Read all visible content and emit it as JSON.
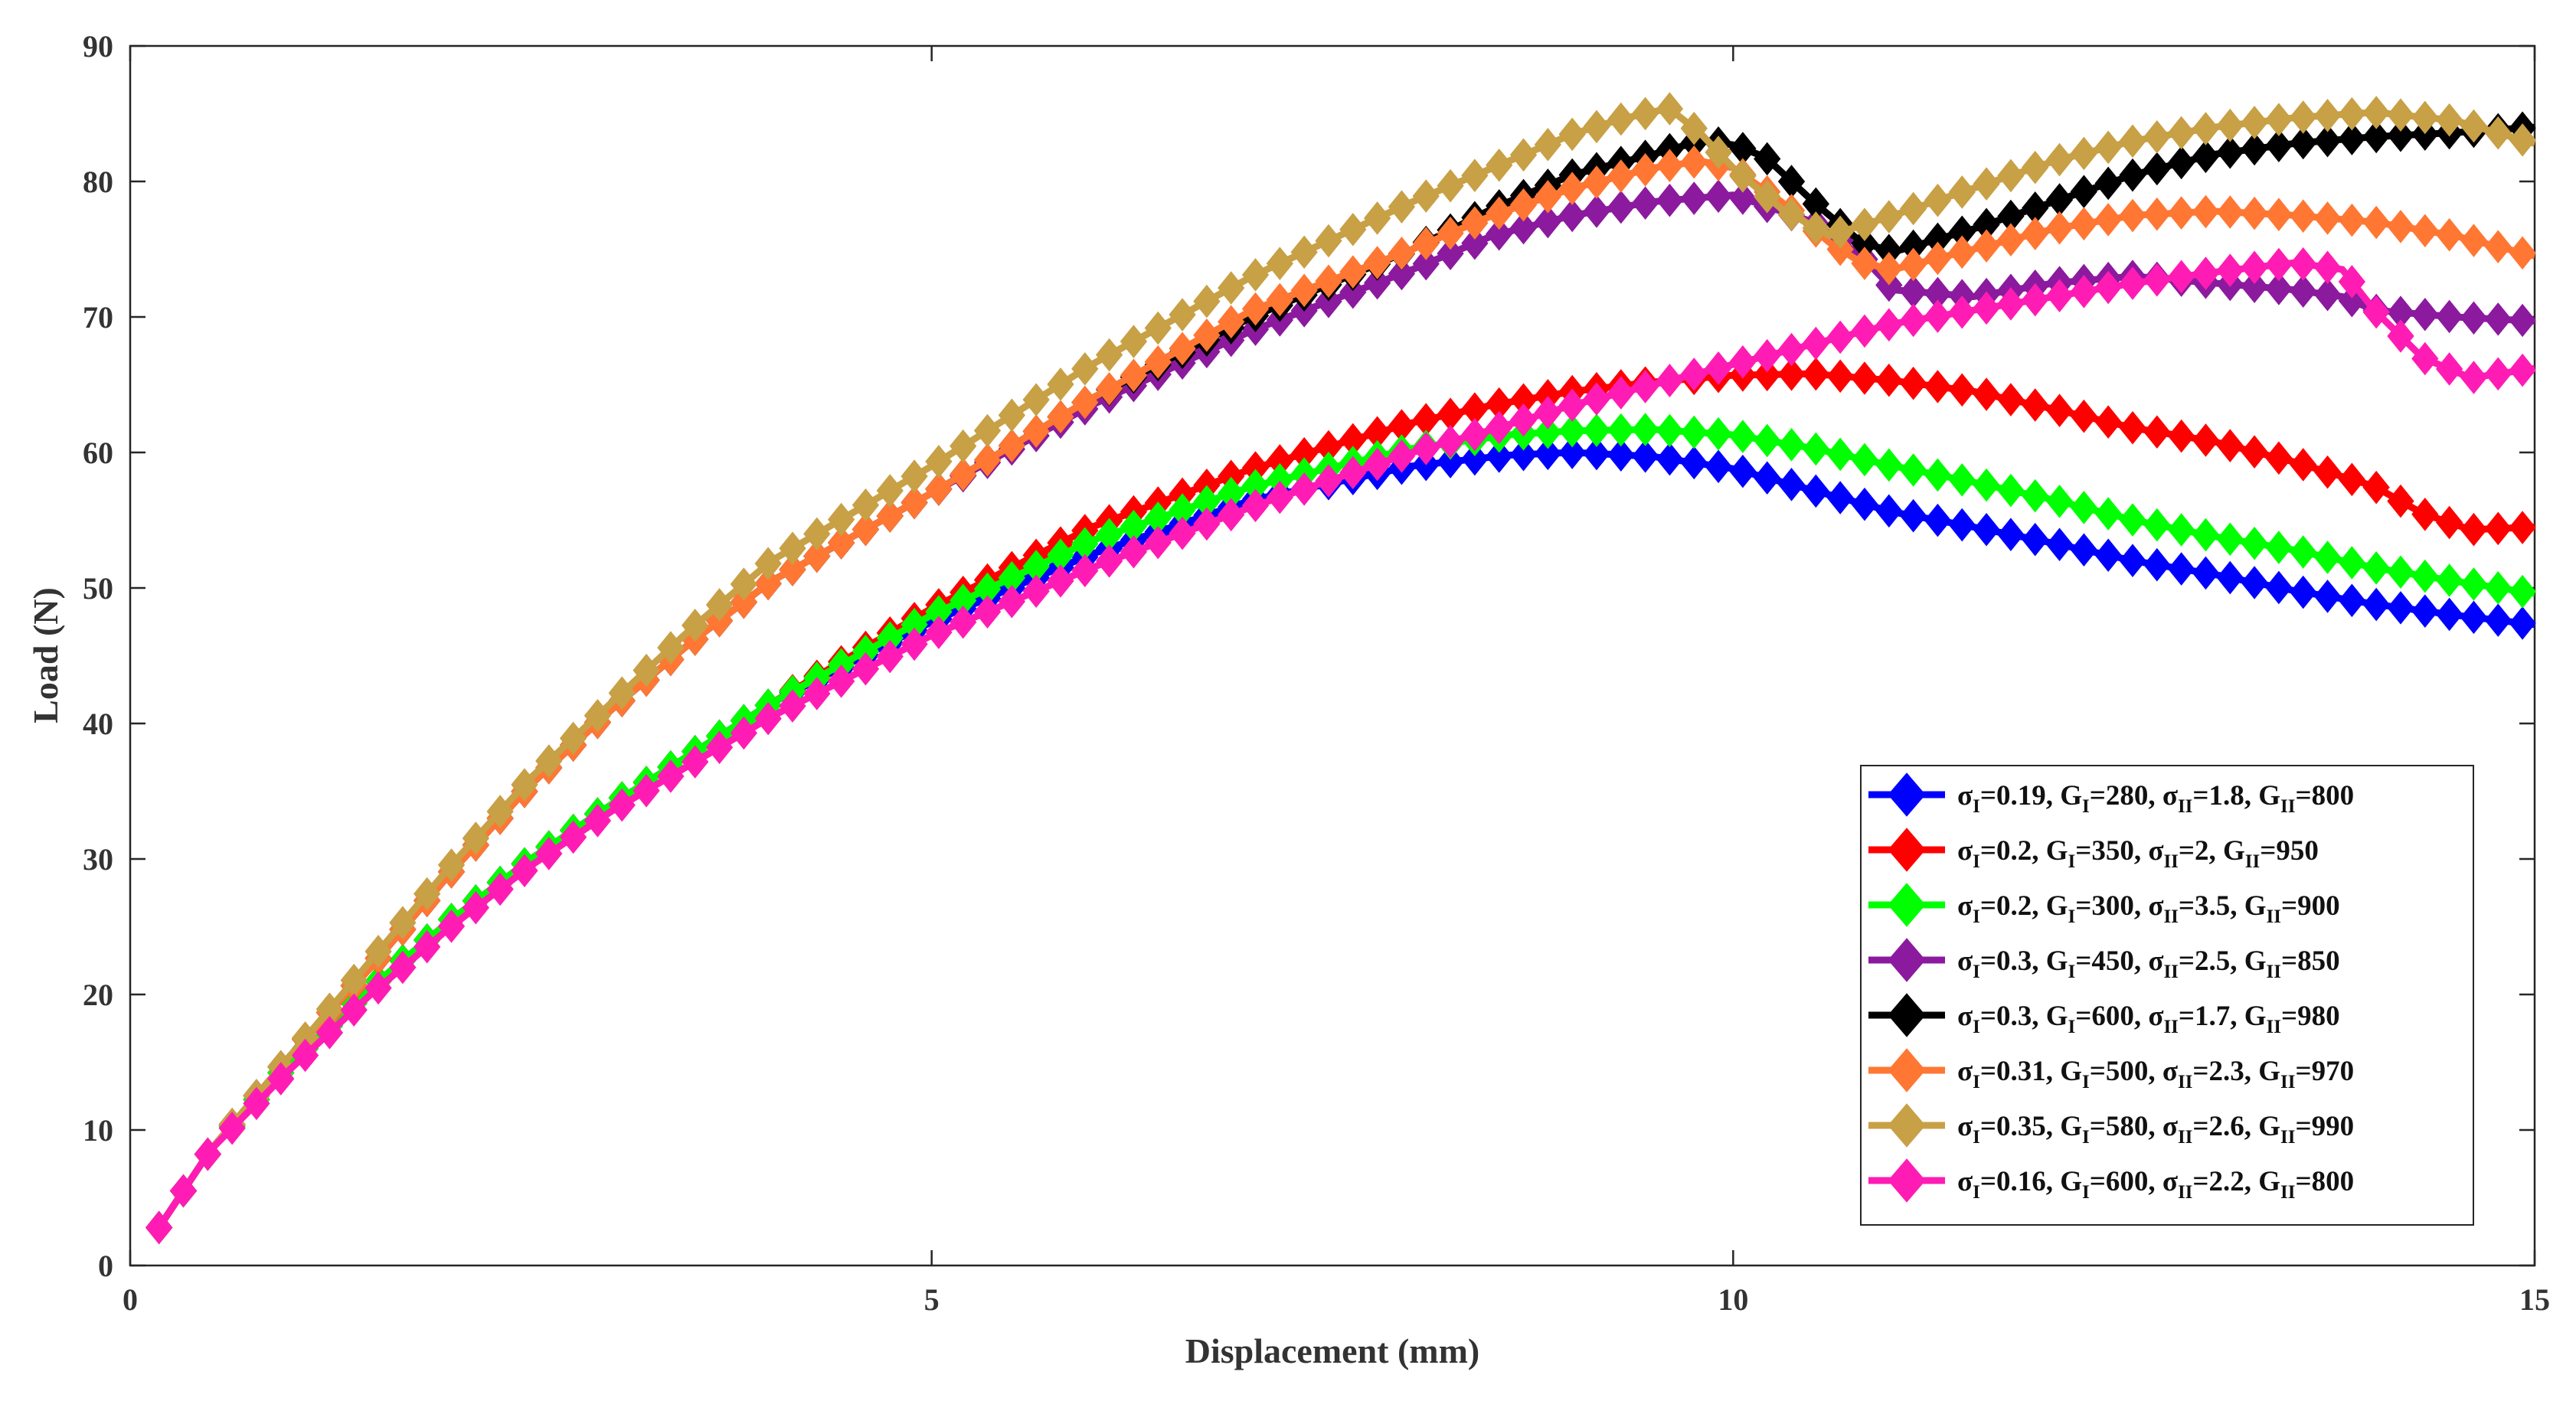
{
  "chart_data": {
    "type": "line",
    "title": "",
    "xlabel": "Displacement (mm)",
    "ylabel": "Load (N)",
    "xlim": [
      0,
      15
    ],
    "ylim": [
      0,
      90
    ],
    "xticks": [
      0,
      5,
      10,
      15
    ],
    "yticks": [
      0,
      10,
      20,
      30,
      40,
      50,
      60,
      70,
      80,
      90
    ],
    "xtick_labels": [
      "0",
      "5",
      "10",
      "15"
    ],
    "ytick_labels": [
      "0",
      "10",
      "20",
      "30",
      "40",
      "50",
      "60",
      "70",
      "80",
      "90"
    ],
    "grid": false,
    "legend_position": "bottom-right",
    "marker": "diamond",
    "series": [
      {
        "name": "σI=0.19, GI=280, σII=1.8, GII=800",
        "legend": {
          "s1": "0.19",
          "g1": "280",
          "s2": "1.8",
          "g2": "800"
        },
        "color": "#0000ff",
        "points": [
          [
            0.18,
            2.8
          ],
          [
            0.5,
            8.5
          ],
          [
            1,
            15
          ],
          [
            1.5,
            20.5
          ],
          [
            2,
            25.5
          ],
          [
            2.5,
            30
          ],
          [
            3,
            34
          ],
          [
            4,
            41.5
          ],
          [
            5,
            47.5
          ],
          [
            6,
            52.5
          ],
          [
            7,
            56.5
          ],
          [
            8,
            59
          ],
          [
            8.6,
            59.8
          ],
          [
            9,
            60
          ],
          [
            9.5,
            59.7
          ],
          [
            10,
            58.8
          ],
          [
            10.5,
            57.2
          ],
          [
            11,
            55.6
          ],
          [
            11.5,
            54.5
          ],
          [
            12,
            53.3
          ],
          [
            12.5,
            52
          ],
          [
            13,
            51
          ],
          [
            13.5,
            49.8
          ],
          [
            14,
            48.8
          ],
          [
            14.5,
            48
          ],
          [
            15,
            47.3
          ]
        ]
      },
      {
        "name": "σI=0.2, GI=350, σII=2, GII=950",
        "legend": {
          "s1": "0.2",
          "g1": "350",
          "s2": "2",
          "g2": "950"
        },
        "color": "#ff0000",
        "points": [
          [
            0.18,
            2.8
          ],
          [
            0.5,
            8.5
          ],
          [
            1,
            15
          ],
          [
            1.5,
            20.5
          ],
          [
            2,
            25.5
          ],
          [
            2.5,
            30
          ],
          [
            3,
            34
          ],
          [
            4,
            41.5
          ],
          [
            5,
            48.5
          ],
          [
            6,
            54.5
          ],
          [
            7,
            58.8
          ],
          [
            8,
            62.2
          ],
          [
            8.5,
            63.5
          ],
          [
            9,
            64.5
          ],
          [
            9.5,
            65.2
          ],
          [
            10,
            65.7
          ],
          [
            10.5,
            65.8
          ],
          [
            11,
            65.3
          ],
          [
            11.5,
            64.5
          ],
          [
            12,
            63.2
          ],
          [
            12.5,
            61.8
          ],
          [
            13,
            60.8
          ],
          [
            13.5,
            59.3
          ],
          [
            14,
            57.5
          ],
          [
            14.3,
            55.5
          ],
          [
            14.6,
            54.3
          ],
          [
            15,
            54.5
          ]
        ]
      },
      {
        "name": "σI=0.2, GI=300, σII=3.5, GII=900",
        "legend": {
          "s1": "0.2",
          "g1": "300",
          "s2": "3.5",
          "g2": "900"
        },
        "color": "#00ff00",
        "points": [
          [
            0.18,
            2.8
          ],
          [
            0.5,
            8.5
          ],
          [
            1,
            15
          ],
          [
            1.5,
            20.5
          ],
          [
            2,
            25.5
          ],
          [
            2.5,
            30
          ],
          [
            3,
            34
          ],
          [
            4,
            41.5
          ],
          [
            5,
            48
          ],
          [
            6,
            53.5
          ],
          [
            7,
            57.5
          ],
          [
            8,
            60.3
          ],
          [
            8.6,
            61.3
          ],
          [
            9,
            61.6
          ],
          [
            9.5,
            61.7
          ],
          [
            10,
            61.3
          ],
          [
            10.5,
            60.3
          ],
          [
            11,
            59
          ],
          [
            11.5,
            57.8
          ],
          [
            12,
            56.5
          ],
          [
            12.5,
            55
          ],
          [
            13,
            53.8
          ],
          [
            13.5,
            52.8
          ],
          [
            14,
            51.5
          ],
          [
            14.5,
            50.5
          ],
          [
            15,
            49.6
          ]
        ]
      },
      {
        "name": "σI=0.3, GI=450, σII=2.5, GII=850",
        "legend": {
          "s1": "0.3",
          "g1": "450",
          "s2": "2.5",
          "g2": "850"
        },
        "color": "#8b1a9e",
        "points": [
          [
            0.18,
            2.8
          ],
          [
            0.5,
            8.5
          ],
          [
            1,
            15.5
          ],
          [
            1.5,
            22
          ],
          [
            2,
            29
          ],
          [
            2.5,
            35.5
          ],
          [
            3,
            41
          ],
          [
            3.5,
            46
          ],
          [
            4,
            50.5
          ],
          [
            5,
            57
          ],
          [
            6,
            63.5
          ],
          [
            7,
            69
          ],
          [
            8,
            73.5
          ],
          [
            8.5,
            76
          ],
          [
            9,
            77.5
          ],
          [
            9.5,
            78.5
          ],
          [
            10,
            79
          ],
          [
            10.5,
            77
          ],
          [
            10.8,
            74.5
          ],
          [
            11,
            72
          ],
          [
            11.5,
            71.5
          ],
          [
            12,
            72.5
          ],
          [
            12.5,
            73
          ],
          [
            13,
            72.5
          ],
          [
            13.5,
            72
          ],
          [
            13.8,
            71.5
          ],
          [
            14,
            70.5
          ],
          [
            14.5,
            70
          ],
          [
            15,
            69.7
          ]
        ]
      },
      {
        "name": "σI=0.3, GI=600, σII=1.7, GII=980",
        "legend": {
          "s1": "0.3",
          "g1": "600",
          "s2": "1.7",
          "g2": "980"
        },
        "color": "#000000",
        "points": [
          [
            0.18,
            2.8
          ],
          [
            0.5,
            8.5
          ],
          [
            1,
            15.5
          ],
          [
            1.5,
            22
          ],
          [
            2,
            29
          ],
          [
            2.5,
            35.5
          ],
          [
            3,
            41
          ],
          [
            3.5,
            46
          ],
          [
            4,
            50.5
          ],
          [
            5,
            57
          ],
          [
            6,
            64
          ],
          [
            7,
            70
          ],
          [
            8,
            75
          ],
          [
            8.5,
            78
          ],
          [
            9,
            80.5
          ],
          [
            9.5,
            82
          ],
          [
            9.8,
            83
          ],
          [
            10,
            82.7
          ],
          [
            10.2,
            81.8
          ],
          [
            10.5,
            78.5
          ],
          [
            10.8,
            75.5
          ],
          [
            11,
            74.8
          ],
          [
            11.5,
            76.5
          ],
          [
            12,
            78.5
          ],
          [
            12.5,
            80.5
          ],
          [
            13,
            82
          ],
          [
            13.5,
            82.8
          ],
          [
            14,
            83.3
          ],
          [
            14.5,
            83.6
          ],
          [
            15,
            84
          ]
        ]
      },
      {
        "name": "σI=0.31, GI=500, σII=2.3, GII=970",
        "legend": {
          "s1": "0.31",
          "g1": "500",
          "s2": "2.3",
          "g2": "970"
        },
        "color": "#ff7733",
        "points": [
          [
            0.18,
            2.8
          ],
          [
            0.5,
            8.5
          ],
          [
            1,
            15.5
          ],
          [
            1.5,
            22
          ],
          [
            2,
            29
          ],
          [
            2.5,
            35.5
          ],
          [
            3,
            41
          ],
          [
            3.5,
            46
          ],
          [
            4,
            50.5
          ],
          [
            5,
            57
          ],
          [
            6,
            64
          ],
          [
            7,
            70.5
          ],
          [
            8,
            75
          ],
          [
            8.5,
            77.5
          ],
          [
            9,
            79.5
          ],
          [
            9.5,
            81
          ],
          [
            9.8,
            81.5
          ],
          [
            10,
            81
          ],
          [
            10.3,
            78.5
          ],
          [
            10.6,
            75.5
          ],
          [
            10.8,
            74
          ],
          [
            11,
            73.5
          ],
          [
            11.5,
            75
          ],
          [
            12,
            76.5
          ],
          [
            12.5,
            77.5
          ],
          [
            13,
            77.8
          ],
          [
            13.5,
            77.5
          ],
          [
            14,
            77
          ],
          [
            14.5,
            76
          ],
          [
            15,
            74.5
          ]
        ]
      },
      {
        "name": "σI=0.35, GI=580, σII=2.6, GII=990",
        "legend": {
          "s1": "0.35",
          "g1": "580",
          "s2": "2.6",
          "g2": "990"
        },
        "color": "#c8a045",
        "points": [
          [
            0.18,
            2.8
          ],
          [
            0.5,
            8.5
          ],
          [
            1,
            15.5
          ],
          [
            1.5,
            22.5
          ],
          [
            2,
            29.5
          ],
          [
            2.5,
            36
          ],
          [
            3,
            41.5
          ],
          [
            3.5,
            47
          ],
          [
            4,
            52
          ],
          [
            5,
            59
          ],
          [
            6,
            66.5
          ],
          [
            7,
            73
          ],
          [
            8,
            78.5
          ],
          [
            8.5,
            81
          ],
          [
            9,
            83.5
          ],
          [
            9.3,
            84.6
          ],
          [
            9.6,
            85.4
          ],
          [
            9.8,
            83.5
          ],
          [
            10,
            81
          ],
          [
            10.3,
            78
          ],
          [
            10.6,
            76
          ],
          [
            11,
            77.5
          ],
          [
            11.5,
            79.5
          ],
          [
            12,
            81.5
          ],
          [
            12.5,
            83
          ],
          [
            13,
            84
          ],
          [
            13.5,
            84.7
          ],
          [
            14,
            85.1
          ],
          [
            14.5,
            84.5
          ],
          [
            15,
            82.8
          ]
        ]
      },
      {
        "name": "σI=0.16, GI=600, σII=2.2, GII=800",
        "legend": {
          "s1": "0.16",
          "g1": "600",
          "s2": "2.2",
          "g2": "800"
        },
        "color": "#ff1cb4",
        "points": [
          [
            0.18,
            2.8
          ],
          [
            0.5,
            8.5
          ],
          [
            1,
            14.5
          ],
          [
            1.5,
            20
          ],
          [
            2,
            25
          ],
          [
            2.5,
            29.5
          ],
          [
            3,
            33.5
          ],
          [
            4,
            40.5
          ],
          [
            5,
            46.5
          ],
          [
            6,
            51.5
          ],
          [
            7,
            56
          ],
          [
            8,
            60
          ],
          [
            8.5,
            61.7
          ],
          [
            9,
            63.5
          ],
          [
            9.5,
            65
          ],
          [
            10,
            66.5
          ],
          [
            10.5,
            68
          ],
          [
            11,
            69.5
          ],
          [
            11.5,
            70.5
          ],
          [
            12,
            71.5
          ],
          [
            12.5,
            72.5
          ],
          [
            13,
            73.3
          ],
          [
            13.5,
            74
          ],
          [
            13.8,
            73.5
          ],
          [
            14,
            70.5
          ],
          [
            14.3,
            67
          ],
          [
            14.6,
            65.5
          ],
          [
            15,
            66.2
          ]
        ]
      }
    ]
  }
}
